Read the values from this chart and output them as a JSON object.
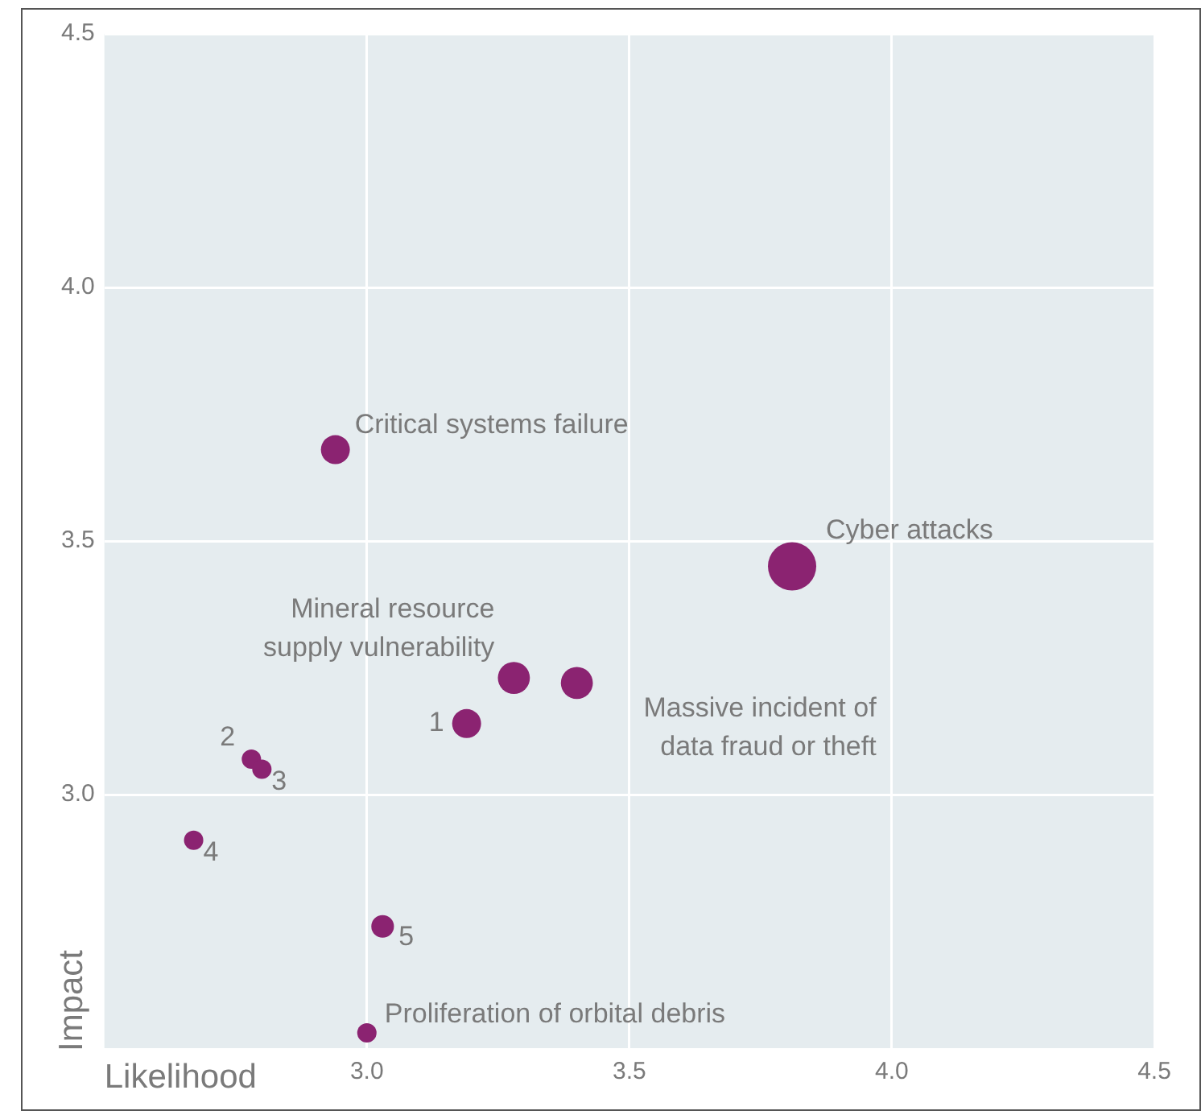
{
  "chart_data": {
    "type": "bubble",
    "xlabel": "Likelihood",
    "ylabel": "Impact",
    "xlim": [
      2.5,
      4.5
    ],
    "ylim": [
      2.5,
      4.5
    ],
    "xticks": [
      {
        "value": 3,
        "label": "3.0"
      },
      3.5,
      {
        "value": 4,
        "label": "4.0"
      },
      4.5
    ],
    "yticks": [
      {
        "value": 3,
        "label": "3.0"
      },
      3.5,
      {
        "value": 4,
        "label": "4.0"
      },
      4.5
    ],
    "grid": true,
    "legend": false,
    "series": [
      {
        "color": "#8b2371",
        "x": [
          2.94,
          3.81,
          3.28,
          3.4,
          3.19,
          2.78,
          2.8,
          2.67,
          3.03,
          3.0
        ],
        "values": [
          3.68,
          3.45,
          3.23,
          3.22,
          3.14,
          3.07,
          3.05,
          2.91,
          2.74,
          2.53
        ],
        "sizes": [
          0.36,
          1,
          0.44,
          0.44,
          0.36,
          0.16,
          0.16,
          0.16,
          0.22,
          0.16
        ]
      }
    ],
    "annotations": [
      {
        "text": "Critical systems failure",
        "x": 2.94,
        "y": 3.68
      },
      {
        "text": "Cyber attacks",
        "x": 3.81,
        "y": 3.45
      },
      {
        "text": "Mineral resource supply vulnerability",
        "x": 3.28,
        "y": 3.23
      },
      {
        "text": "Massive incident of data fraud or theft",
        "x": 3.4,
        "y": 3.22
      },
      {
        "text": "1",
        "x": 3.19,
        "y": 3.14
      },
      {
        "text": "2",
        "x": 2.78,
        "y": 3.07
      },
      {
        "text": "3",
        "x": 2.8,
        "y": 3.05
      },
      {
        "text": "4",
        "x": 2.67,
        "y": 2.91
      },
      {
        "text": "5",
        "x": 3.03,
        "y": 2.74
      },
      {
        "text": "Proliferation of orbital debris",
        "x": 3.0,
        "y": 2.53
      }
    ]
  }
}
